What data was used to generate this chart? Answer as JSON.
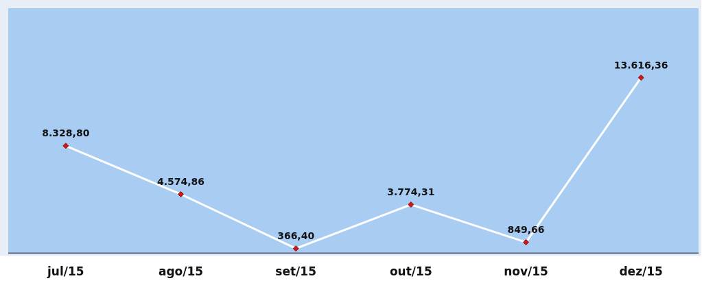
{
  "chart_data": {
    "type": "line",
    "categories": [
      "jul/15",
      "ago/15",
      "set/15",
      "out/15",
      "nov/15",
      "dez/15"
    ],
    "series": [
      {
        "color": "#ffffff",
        "values": [
          8328.8,
          4574.86,
          366.4,
          3774.31,
          849.66,
          13616.36
        ],
        "value_labels": [
          "8.328,80",
          "4.574,86",
          "366,40",
          "3.774,31",
          "849,66",
          "13.616,36"
        ]
      }
    ],
    "ylim": [
      0,
      19000
    ],
    "tick_labels": "x",
    "marker": "diamond",
    "line_style": "solid",
    "grid": false,
    "legend": false
  }
}
